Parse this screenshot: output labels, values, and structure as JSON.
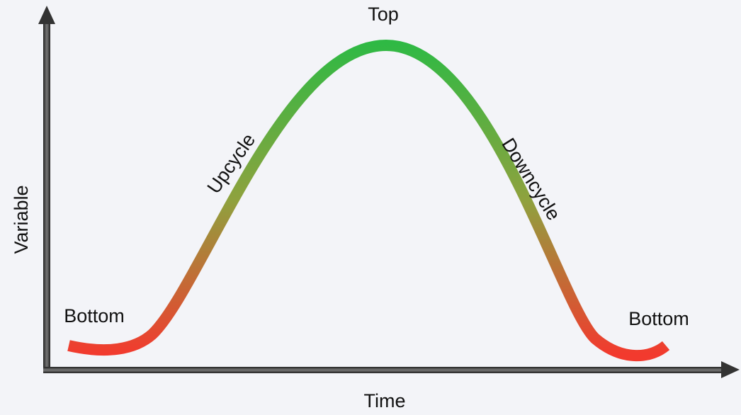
{
  "axes": {
    "y_label": "Variable",
    "x_label": "Time"
  },
  "phases": {
    "top": "Top",
    "upcycle": "Upcycle",
    "downcycle": "Downcycle",
    "bottom_left": "Bottom",
    "bottom_right": "Bottom"
  }
}
